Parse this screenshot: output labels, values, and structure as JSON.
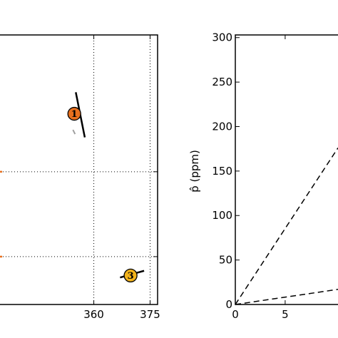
{
  "chart_data": [
    {
      "type": "scatter",
      "xlim": [
        335,
        377
      ],
      "ylim": [
        0,
        4
      ],
      "x_ticks": [
        360,
        375
      ],
      "x_tick_labels": [
        "360",
        "375"
      ],
      "grid": true,
      "markers": [
        {
          "label": "1",
          "x": 354.8,
          "y": 2.83,
          "color": "#e8701e"
        },
        {
          "label": "3",
          "x": 369.8,
          "y": 0.43,
          "color": "#f2b31c"
        }
      ],
      "segments": [
        {
          "x": [
            355.2,
            357.6
          ],
          "y": [
            3.15,
            2.48
          ]
        },
        {
          "x": [
            367.0,
            373.4
          ],
          "y": [
            0.4,
            0.5
          ]
        }
      ],
      "gray_fragment": {
        "x": 355.2,
        "y": 2.55,
        "color": "#a0a0a0"
      },
      "orange_edge": [
        {
          "y": 1.97
        },
        {
          "y": 0.71
        }
      ]
    },
    {
      "type": "line",
      "xlim": [
        0,
        10.3
      ],
      "ylim": [
        0,
        303
      ],
      "x_ticks": [
        0,
        5
      ],
      "x_tick_labels": [
        "0",
        "5"
      ],
      "y_ticks": [
        0,
        50,
        100,
        150,
        200,
        250,
        300
      ],
      "y_tick_labels": [
        "0",
        "50",
        "100",
        "150",
        "200",
        "250",
        "300"
      ],
      "ylabel": "p̂ (ppm)",
      "series": [
        {
          "x": [
            0,
            10.3
          ],
          "y": [
            0,
            176
          ],
          "style": "dashed"
        },
        {
          "x": [
            0,
            10.3
          ],
          "y": [
            0,
            17
          ],
          "style": "dashed"
        }
      ]
    }
  ]
}
